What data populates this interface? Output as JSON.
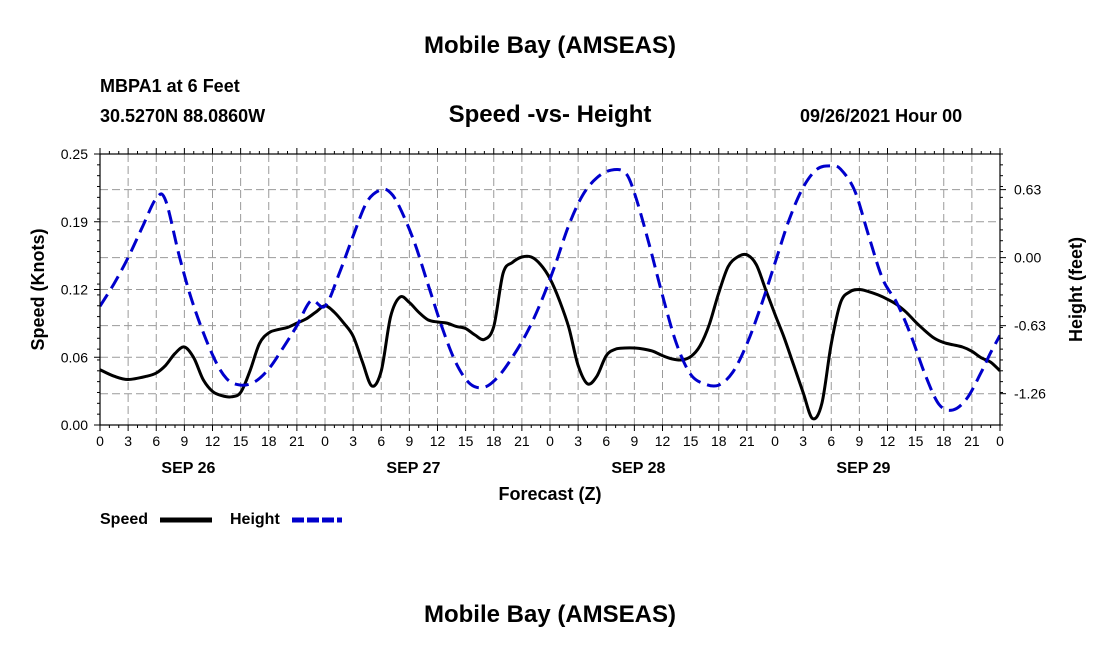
{
  "header": {
    "title": "Mobile Bay (AMSEAS)",
    "station": "MBPA1 at 6 Feet",
    "coords": "30.5270N  88.0860W",
    "chart_title": "Speed -vs- Height",
    "run_time": "09/26/2021 Hour 00"
  },
  "footer": {
    "title": "Mobile Bay (AMSEAS)"
  },
  "colors": {
    "speed": "#000000",
    "height": "#0000cc",
    "grid": "#9a9a9a"
  },
  "chart_data": {
    "type": "line",
    "title": "Speed -vs- Height",
    "xlabel": "Forecast (Z)",
    "ylabel": "Speed (Knots)",
    "y2label": "Height (feet)",
    "xlim": [
      0,
      96
    ],
    "ylim": [
      0,
      0.25
    ],
    "y2lim": [
      -1.55,
      0.96
    ],
    "grid": true,
    "legend_position": "bottom-left",
    "x_ticks": [
      "0",
      "3",
      "6",
      "9",
      "12",
      "15",
      "18",
      "21",
      "0",
      "3",
      "6",
      "9",
      "12",
      "15",
      "18",
      "21",
      "0",
      "3",
      "6",
      "9",
      "12",
      "15",
      "18",
      "21",
      "0",
      "3",
      "6",
      "9",
      "12",
      "15",
      "18",
      "21",
      "0"
    ],
    "y_ticks": [
      "0.00",
      "0.06",
      "0.12",
      "0.19",
      "0.25"
    ],
    "y_tick_values": [
      0,
      0.0625,
      0.125,
      0.1875,
      0.25
    ],
    "y2_ticks": [
      "-1.26",
      "-0.63",
      "0.00",
      "0.63"
    ],
    "y2_tick_values": [
      -1.26,
      -0.63,
      0.0,
      0.63
    ],
    "date_labels": [
      {
        "label": "SEP 26",
        "hour": 9
      },
      {
        "label": "SEP 27",
        "hour": 33
      },
      {
        "label": "SEP 28",
        "hour": 57
      },
      {
        "label": "SEP 29",
        "hour": 81
      }
    ],
    "series": [
      {
        "name": "Speed",
        "axis": "left",
        "style": "solid",
        "x": [
          0,
          1.5,
          3,
          5,
          6,
          7,
          8,
          9,
          10,
          11,
          12,
          13,
          14,
          15,
          16,
          17,
          18,
          19,
          20,
          21,
          22,
          23,
          24,
          25,
          26,
          27,
          28,
          29,
          30,
          31,
          32,
          33,
          34,
          35,
          36,
          37,
          38,
          39,
          40,
          41,
          42,
          43,
          44,
          45,
          46,
          47,
          48,
          49,
          50,
          51,
          52,
          53,
          54,
          55,
          56,
          57,
          58,
          59,
          60,
          61,
          62,
          63,
          64,
          65,
          66,
          67,
          68,
          69,
          70,
          71,
          72,
          73,
          74,
          75,
          76,
          77,
          78,
          79,
          80,
          81,
          82,
          83,
          84,
          85,
          86,
          87,
          88,
          89,
          90,
          91,
          92,
          93,
          94,
          95,
          96
        ],
        "y": [
          0.051,
          0.045,
          0.042,
          0.045,
          0.048,
          0.055,
          0.066,
          0.072,
          0.062,
          0.042,
          0.031,
          0.027,
          0.026,
          0.03,
          0.05,
          0.075,
          0.085,
          0.088,
          0.09,
          0.094,
          0.098,
          0.104,
          0.11,
          0.104,
          0.094,
          0.082,
          0.058,
          0.036,
          0.05,
          0.1,
          0.118,
          0.113,
          0.104,
          0.097,
          0.095,
          0.094,
          0.091,
          0.089,
          0.083,
          0.079,
          0.091,
          0.14,
          0.15,
          0.155,
          0.155,
          0.148,
          0.135,
          0.115,
          0.09,
          0.055,
          0.038,
          0.045,
          0.064,
          0.07,
          0.071,
          0.071,
          0.07,
          0.068,
          0.064,
          0.061,
          0.06,
          0.063,
          0.073,
          0.093,
          0.122,
          0.146,
          0.155,
          0.157,
          0.148,
          0.125,
          0.102,
          0.08,
          0.055,
          0.03,
          0.006,
          0.02,
          0.075,
          0.113,
          0.123,
          0.125,
          0.123,
          0.12,
          0.116,
          0.111,
          0.104,
          0.095,
          0.087,
          0.08,
          0.076,
          0.074,
          0.072,
          0.068,
          0.062,
          0.058,
          0.05
        ]
      },
      {
        "name": "Height",
        "axis": "right",
        "style": "dashed",
        "x": [
          0,
          1.5,
          3,
          4.5,
          6,
          7,
          8.5,
          10,
          12,
          13.5,
          15,
          16.5,
          18,
          19.5,
          21,
          22.5,
          24,
          25.5,
          27,
          28.5,
          30,
          31,
          32,
          33.5,
          35,
          36.5,
          38,
          39.5,
          41,
          42.5,
          44,
          45.5,
          47,
          48.5,
          50,
          51.5,
          53,
          54.5,
          56,
          57,
          58.5,
          60,
          61.5,
          63,
          64.5,
          66,
          67.5,
          69,
          70.5,
          72,
          73.5,
          75,
          76.5,
          78,
          79,
          80.5,
          82,
          83.5,
          85,
          86.5,
          88,
          89.5,
          91,
          92.5,
          94,
          95,
          96
        ],
        "y": [
          -0.45,
          -0.24,
          0.0,
          0.28,
          0.55,
          0.53,
          0.0,
          -0.45,
          -0.9,
          -1.12,
          -1.18,
          -1.15,
          -1.03,
          -0.84,
          -0.63,
          -0.4,
          -0.45,
          -0.15,
          0.2,
          0.52,
          0.63,
          0.6,
          0.46,
          0.15,
          -0.25,
          -0.65,
          -0.98,
          -1.17,
          -1.2,
          -1.1,
          -0.92,
          -0.7,
          -0.42,
          -0.08,
          0.3,
          0.58,
          0.74,
          0.81,
          0.79,
          0.6,
          0.15,
          -0.35,
          -0.8,
          -1.08,
          -1.17,
          -1.18,
          -1.06,
          -0.8,
          -0.45,
          -0.05,
          0.35,
          0.65,
          0.82,
          0.85,
          0.82,
          0.62,
          0.2,
          -0.2,
          -0.42,
          -0.72,
          -1.08,
          -1.36,
          -1.41,
          -1.3,
          -1.06,
          -0.88,
          -0.72
        ]
      }
    ]
  },
  "legend": {
    "items": [
      {
        "label": "Speed"
      },
      {
        "label": "Height"
      }
    ]
  }
}
